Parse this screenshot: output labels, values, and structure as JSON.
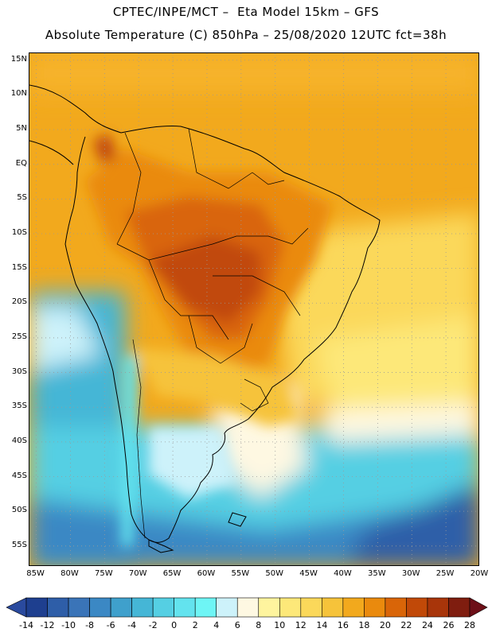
{
  "header": {
    "title_line1": "CPTEC/INPE/MCT –  Eta Model 15km – GFS",
    "title_line2": "Absolute Temperature (C) 850hPa – 25/08/2020 12UTC fct=38h"
  },
  "map": {
    "lat_labels": [
      "15N",
      "10N",
      "5N",
      "EQ",
      "5S",
      "10S",
      "15S",
      "20S",
      "25S",
      "30S",
      "35S",
      "40S",
      "45S",
      "50S",
      "55S"
    ],
    "lon_labels": [
      "85W",
      "80W",
      "75W",
      "70W",
      "65W",
      "60W",
      "55W",
      "50W",
      "45W",
      "40W",
      "35W",
      "30W",
      "25W",
      "20W"
    ],
    "lat_values": [
      15,
      10,
      5,
      0,
      -5,
      -10,
      -15,
      -20,
      -25,
      -30,
      -35,
      -40,
      -45,
      -50,
      -55
    ],
    "lon_values": [
      -85,
      -80,
      -75,
      -70,
      -65,
      -60,
      -55,
      -50,
      -45,
      -40,
      -35,
      -30,
      -25,
      -20
    ],
    "bounds": {
      "lon_min": -86,
      "lon_max": -20,
      "lat_min": -58,
      "lat_max": 16
    }
  },
  "colorbar": {
    "ticks": [
      "-14",
      "-12",
      "-10",
      "-8",
      "-6",
      "-4",
      "-2",
      "0",
      "2",
      "4",
      "6",
      "8",
      "10",
      "12",
      "14",
      "16",
      "18",
      "20",
      "22",
      "24",
      "26",
      "28"
    ],
    "colors": [
      "#2a4a9e",
      "#1e3f8f",
      "#2e5ea8",
      "#3a74b8",
      "#3b88c4",
      "#3fa0cc",
      "#45b6d6",
      "#55cfe3",
      "#63e3ee",
      "#6ef5f5",
      "#cdf2fa",
      "#fef8e2",
      "#fef49e",
      "#fde879",
      "#fbd85a",
      "#f6c33a",
      "#f2a91d",
      "#ea8a0d",
      "#d96508",
      "#c14908",
      "#a8350a",
      "#7f1d0f",
      "#6d0f18"
    ]
  }
}
